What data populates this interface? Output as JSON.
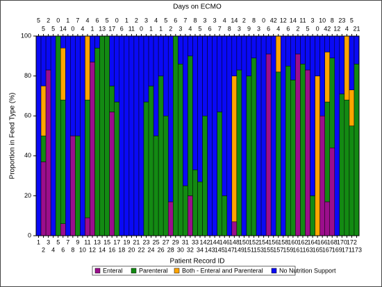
{
  "chart_data": {
    "type": "stacked_bar",
    "title": "Days on ECMO",
    "x_label": "Patient Record ID",
    "y_label": "Proportion in Feed Type (%)",
    "categories": [
      "1",
      "2",
      "3",
      "4",
      "5",
      "6",
      "7",
      "8",
      "9",
      "10",
      "11",
      "12",
      "13",
      "14",
      "15",
      "16",
      "17",
      "18",
      "19",
      "20",
      "21",
      "22",
      "23",
      "24",
      "25",
      "26",
      "27",
      "28",
      "29",
      "30",
      "31",
      "32",
      "33",
      "34",
      "142",
      "143",
      "144",
      "145",
      "146",
      "147",
      "148",
      "149",
      "150",
      "151",
      "152",
      "153",
      "154",
      "155",
      "156",
      "157",
      "158",
      "159",
      "160",
      "161",
      "162",
      "163",
      "164",
      "165",
      "166",
      "167",
      "168",
      "169",
      "170",
      "171",
      "172",
      "173"
    ],
    "days_on_ecmo": [
      5,
      5,
      2,
      5,
      0,
      14,
      1,
      0,
      7,
      4,
      4,
      1,
      6,
      13,
      5,
      17,
      0,
      6,
      1,
      11,
      2,
      0,
      3,
      1,
      4,
      1,
      5,
      2,
      6,
      3,
      7,
      4,
      8,
      5,
      3,
      6,
      3,
      7,
      4,
      8,
      14,
      3,
      2,
      9,
      8,
      3,
      0,
      6,
      42,
      4,
      12,
      6,
      14,
      2,
      11,
      5,
      3,
      0,
      10,
      42,
      8,
      12,
      23,
      4,
      5,
      21
    ],
    "series": [
      {
        "name": "Enteral",
        "color": "#9b0e8c",
        "values": [
          0,
          37,
          83,
          0,
          0,
          6,
          0,
          50,
          0,
          0,
          9,
          87,
          0,
          0,
          0,
          62,
          0,
          0,
          0,
          0,
          0,
          0,
          0,
          0,
          0,
          0,
          0,
          17,
          0,
          0,
          0,
          20,
          0,
          0,
          0,
          0,
          0,
          0,
          0,
          0,
          7,
          0,
          0,
          0,
          0,
          0,
          0,
          91,
          0,
          0,
          0,
          0,
          0,
          91,
          0,
          83,
          0,
          0,
          60,
          17,
          44,
          0,
          0,
          0,
          0,
          0
        ]
      },
      {
        "name": "Parenteral",
        "color": "#138a13",
        "values": [
          0,
          13,
          0,
          0,
          100,
          62,
          0,
          0,
          50,
          0,
          59,
          0,
          94,
          100,
          100,
          13,
          67,
          0,
          0,
          0,
          0,
          0,
          67,
          75,
          50,
          80,
          60,
          0,
          100,
          86,
          25,
          70,
          33,
          27,
          60,
          0,
          0,
          62,
          20,
          0,
          0,
          83,
          0,
          80,
          89,
          0,
          0,
          0,
          0,
          82,
          0,
          85,
          78,
          0,
          86,
          0,
          20,
          0,
          0,
          50,
          45,
          0,
          71,
          68,
          55,
          86
        ]
      },
      {
        "name": "Both - Enteral and Parenteral",
        "color": "#ffa500",
        "values": [
          0,
          25,
          0,
          0,
          0,
          26,
          0,
          0,
          0,
          0,
          32,
          0,
          0,
          0,
          0,
          0,
          0,
          0,
          0,
          0,
          0,
          0,
          0,
          0,
          0,
          0,
          0,
          0,
          0,
          0,
          0,
          0,
          0,
          0,
          0,
          0,
          0,
          0,
          0,
          0,
          73,
          0,
          0,
          0,
          0,
          0,
          0,
          0,
          0,
          18,
          0,
          0,
          0,
          0,
          0,
          0,
          0,
          80,
          0,
          25,
          0,
          0,
          0,
          32,
          18,
          0
        ]
      },
      {
        "name": "No Nutrition Support",
        "color": "#0a0af5",
        "values": [
          100,
          25,
          17,
          100,
          0,
          6,
          100,
          50,
          50,
          100,
          0,
          13,
          6,
          0,
          0,
          25,
          33,
          100,
          100,
          100,
          100,
          100,
          33,
          25,
          50,
          20,
          40,
          83,
          0,
          14,
          75,
          10,
          67,
          73,
          40,
          100,
          100,
          38,
          80,
          100,
          20,
          17,
          100,
          20,
          11,
          100,
          100,
          9,
          100,
          0,
          100,
          15,
          22,
          9,
          14,
          17,
          80,
          20,
          40,
          8,
          11,
          100,
          29,
          0,
          27,
          14
        ]
      }
    ],
    "ylim": [
      0,
      100
    ],
    "yticks": [
      0,
      20,
      40,
      60,
      80,
      100
    ],
    "legend": "bottom"
  }
}
